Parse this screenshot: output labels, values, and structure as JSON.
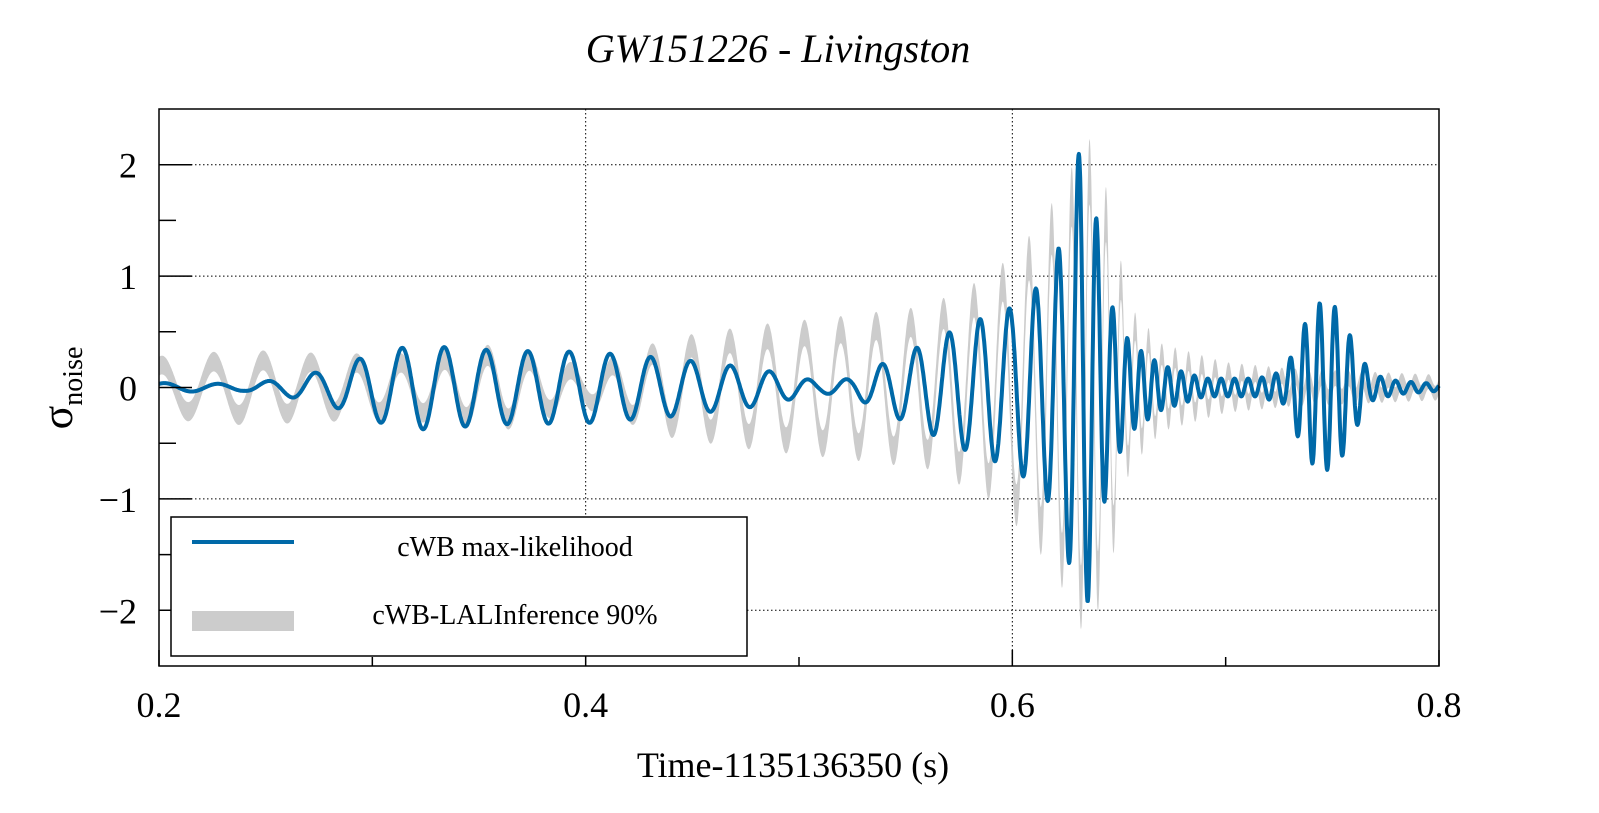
{
  "chart_data": {
    "type": "line",
    "title": "GW151226 - Livingston",
    "xlabel": "Time-1135136350 (s)",
    "ylabel": {
      "base": "σ",
      "subscript": "noise"
    },
    "xlim": [
      0.2,
      0.8
    ],
    "ylim": [
      -2.5,
      2.5
    ],
    "xticks": [
      0.2,
      0.4,
      0.6,
      0.8
    ],
    "xtick_labels": [
      "0.2",
      "0.4",
      "0.6",
      "0.8"
    ],
    "x_minor_ticks": [
      0.3,
      0.5,
      0.7
    ],
    "yticks": [
      -2,
      -1,
      0,
      1,
      2
    ],
    "ytick_labels": [
      "−2",
      "−1",
      "0",
      "1",
      "2"
    ],
    "y_minor_ticks": [
      -1.5,
      -0.5,
      0.5,
      1.5
    ],
    "grid": "dotted at major ticks",
    "legend": {
      "position": "bottom-left",
      "entries": [
        "cWB max-likelihood",
        "cWB-LALInference 90%"
      ]
    },
    "colors": {
      "line": "#0069a8",
      "band": "#cccccc"
    },
    "series": [
      {
        "name": "cWB max-likelihood",
        "kind": "line",
        "envelope": [
          [
            0.2,
            0.04
          ],
          [
            0.24,
            0.03
          ],
          [
            0.26,
            0.08
          ],
          [
            0.28,
            0.16
          ],
          [
            0.3,
            0.3
          ],
          [
            0.32,
            0.38
          ],
          [
            0.36,
            0.33
          ],
          [
            0.4,
            0.32
          ],
          [
            0.44,
            0.26
          ],
          [
            0.48,
            0.17
          ],
          [
            0.51,
            0.05
          ],
          [
            0.525,
            0.08
          ],
          [
            0.54,
            0.22
          ],
          [
            0.56,
            0.4
          ],
          [
            0.58,
            0.58
          ],
          [
            0.6,
            0.72
          ],
          [
            0.615,
            0.95
          ],
          [
            0.625,
            1.4
          ],
          [
            0.632,
            2.2
          ],
          [
            0.638,
            1.7
          ],
          [
            0.645,
            0.8
          ],
          [
            0.655,
            0.4
          ],
          [
            0.67,
            0.2
          ],
          [
            0.69,
            0.08
          ],
          [
            0.715,
            0.08
          ],
          [
            0.728,
            0.15
          ],
          [
            0.735,
            0.5
          ],
          [
            0.743,
            0.76
          ],
          [
            0.752,
            0.72
          ],
          [
            0.76,
            0.4
          ],
          [
            0.768,
            0.12
          ],
          [
            0.78,
            0.06
          ],
          [
            0.8,
            0.03
          ]
        ],
        "frequency_hz": [
          [
            0.2,
            38
          ],
          [
            0.3,
            50
          ],
          [
            0.4,
            52
          ],
          [
            0.5,
            55
          ],
          [
            0.55,
            62
          ],
          [
            0.6,
            75
          ],
          [
            0.63,
            110
          ],
          [
            0.66,
            160
          ],
          [
            0.7,
            160
          ],
          [
            0.75,
            140
          ],
          [
            0.8,
            140
          ]
        ]
      },
      {
        "name": "cWB-LALInference 90%",
        "kind": "band",
        "envelope": [
          [
            0.2,
            0.2
          ],
          [
            0.24,
            0.25
          ],
          [
            0.28,
            0.22
          ],
          [
            0.32,
            0.22
          ],
          [
            0.36,
            0.3
          ],
          [
            0.4,
            0.12
          ],
          [
            0.44,
            0.35
          ],
          [
            0.48,
            0.45
          ],
          [
            0.52,
            0.52
          ],
          [
            0.56,
            0.6
          ],
          [
            0.59,
            0.85
          ],
          [
            0.61,
            1.2
          ],
          [
            0.625,
            1.6
          ],
          [
            0.635,
            2.0
          ],
          [
            0.645,
            1.5
          ],
          [
            0.655,
            0.6
          ],
          [
            0.67,
            0.3
          ],
          [
            0.7,
            0.15
          ],
          [
            0.73,
            0.1
          ],
          [
            0.8,
            0.05
          ]
        ],
        "frequency_hz": [
          [
            0.2,
            40
          ],
          [
            0.3,
            48
          ],
          [
            0.4,
            52
          ],
          [
            0.5,
            58
          ],
          [
            0.55,
            62
          ],
          [
            0.6,
            78
          ],
          [
            0.63,
            115
          ],
          [
            0.66,
            160
          ],
          [
            0.8,
            160
          ]
        ]
      }
    ]
  }
}
